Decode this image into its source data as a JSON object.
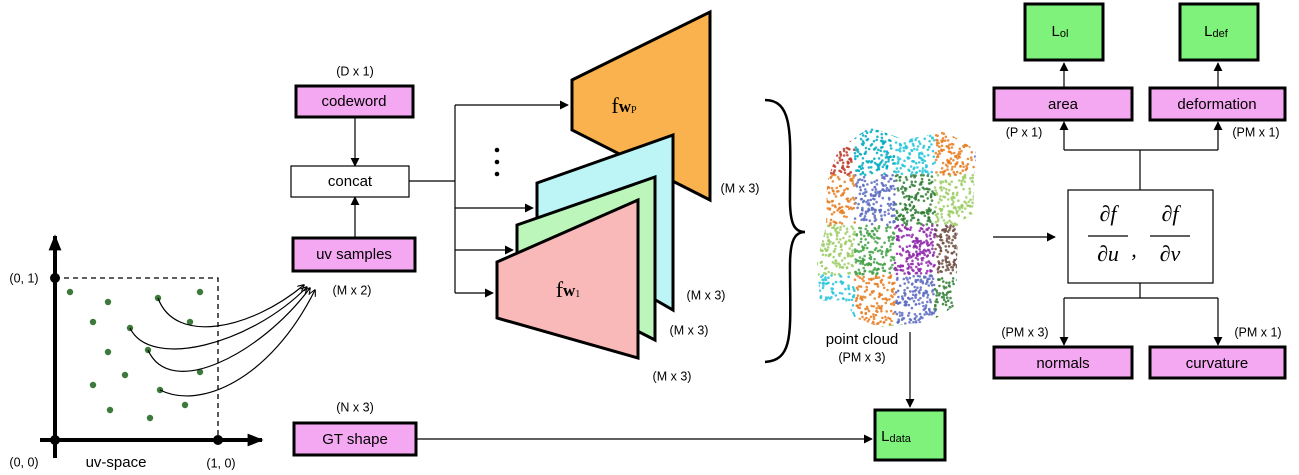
{
  "uv_space": {
    "label": "uv-space",
    "origin": "(0, 0)",
    "v_one": "(0, 1)",
    "u_one": "(1, 0)"
  },
  "inputs": {
    "codeword": {
      "label": "codeword",
      "dims": "(D x 1)"
    },
    "concat": {
      "label": "concat"
    },
    "uv_samples": {
      "label": "uv samples",
      "dims": "(M x 2)"
    },
    "gt_shape": {
      "label": "GT shape",
      "dims": "(N x 3)"
    }
  },
  "networks": [
    {
      "symbol": "f",
      "weight": "w",
      "index": "P",
      "output_dims": "(M x 3)"
    },
    {
      "symbol": "f",
      "weight": "w",
      "index": "1",
      "output_dims": "(M x 3)"
    }
  ],
  "middle_output_dims": [
    "(M x 3)",
    "(M x 3)"
  ],
  "point_cloud": {
    "label": "point cloud",
    "dims": "(PM x 3)"
  },
  "derivatives": {
    "numerator": "∂f",
    "denominators": [
      "∂u",
      "∂v"
    ],
    "separator": ","
  },
  "properties": {
    "area": {
      "label": "area",
      "dims": "(P x 1)"
    },
    "deformation": {
      "label": "deformation",
      "dims": "(PM x 1)"
    },
    "normals": {
      "label": "normals",
      "dims": "(PM x 3)"
    },
    "curvature": {
      "label": "curvature",
      "dims": "(PM x 1)"
    }
  },
  "losses": {
    "symbol": "L",
    "overlap": "ol",
    "deformation": "def",
    "data": "data"
  }
}
